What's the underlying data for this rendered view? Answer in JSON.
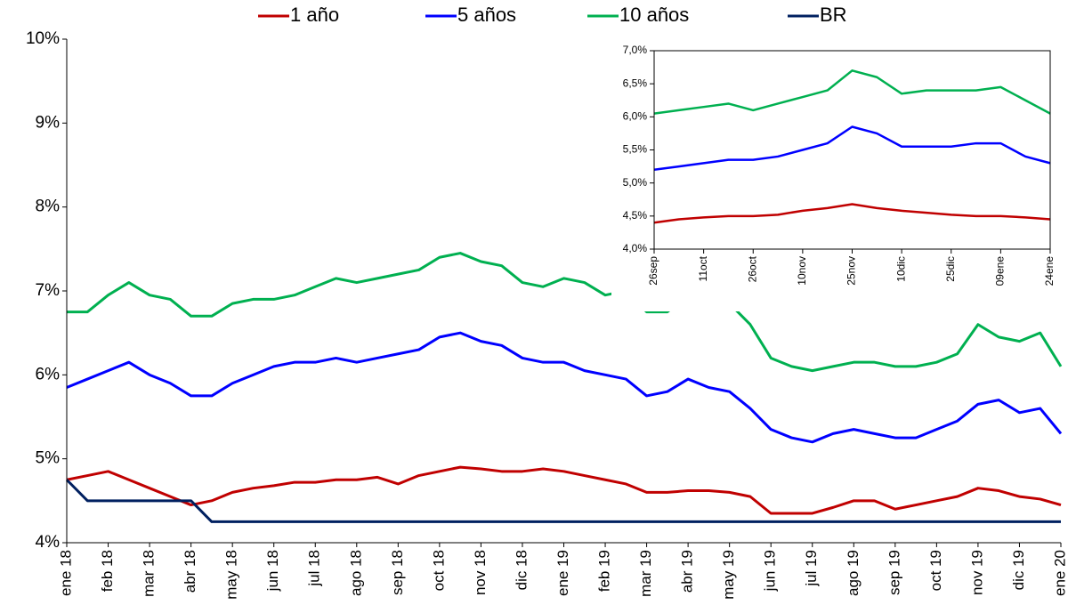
{
  "chart_data": [
    {
      "type": "line",
      "categories": [
        "ene 18",
        null,
        "feb 18",
        null,
        "mar 18",
        null,
        "abr 18",
        null,
        "may 18",
        null,
        "jun 18",
        null,
        "jul 18",
        null,
        "ago 18",
        null,
        "sep 18",
        null,
        "oct 18",
        null,
        "nov 18",
        null,
        "dic 18",
        null,
        "ene 19",
        null,
        "feb 19",
        null,
        "mar 19",
        null,
        "abr 19",
        null,
        "may 19",
        null,
        "jun 19",
        null,
        "jul 19",
        null,
        "ago 19",
        null,
        "sep 19",
        null,
        "oct 19",
        null,
        "nov 19",
        null,
        "dic 19",
        null,
        "ene 20"
      ],
      "series": [
        {
          "name": "1 año",
          "color": "#c00000",
          "values": [
            4.75,
            4.8,
            4.85,
            4.75,
            4.65,
            4.55,
            4.45,
            4.5,
            4.6,
            4.65,
            4.68,
            4.72,
            4.72,
            4.75,
            4.75,
            4.78,
            4.7,
            4.8,
            4.85,
            4.9,
            4.88,
            4.85,
            4.85,
            4.88,
            4.85,
            4.8,
            4.75,
            4.7,
            4.6,
            4.6,
            4.62,
            4.62,
            4.6,
            4.55,
            4.35,
            4.35,
            4.35,
            4.42,
            4.5,
            4.5,
            4.4,
            4.45,
            4.5,
            4.55,
            4.65,
            4.62,
            4.55,
            4.52,
            4.45
          ]
        },
        {
          "name": "5 años",
          "color": "#0000ff",
          "values": [
            5.85,
            5.95,
            6.05,
            6.15,
            6.0,
            5.9,
            5.75,
            5.75,
            5.9,
            6.0,
            6.1,
            6.15,
            6.15,
            6.2,
            6.15,
            6.2,
            6.25,
            6.3,
            6.45,
            6.5,
            6.4,
            6.35,
            6.2,
            6.15,
            6.15,
            6.05,
            6.0,
            5.95,
            5.75,
            5.8,
            5.95,
            5.85,
            5.8,
            5.6,
            5.35,
            5.25,
            5.2,
            5.3,
            5.35,
            5.3,
            5.25,
            5.25,
            5.35,
            5.45,
            5.65,
            5.7,
            5.55,
            5.6,
            5.3
          ]
        },
        {
          "name": "10 años",
          "color": "#00b050",
          "values": [
            6.75,
            6.75,
            6.95,
            7.1,
            6.95,
            6.9,
            6.7,
            6.7,
            6.85,
            6.9,
            6.9,
            6.95,
            7.05,
            7.15,
            7.1,
            7.15,
            7.2,
            7.25,
            7.4,
            7.45,
            7.35,
            7.3,
            7.1,
            7.05,
            7.15,
            7.1,
            6.95,
            7.0,
            6.75,
            6.75,
            6.95,
            6.9,
            6.85,
            6.6,
            6.2,
            6.1,
            6.05,
            6.1,
            6.15,
            6.15,
            6.1,
            6.1,
            6.15,
            6.25,
            6.6,
            6.45,
            6.4,
            6.5,
            6.1
          ]
        },
        {
          "name": "BR",
          "color": "#002060",
          "values": [
            4.75,
            4.5,
            4.5,
            4.5,
            4.5,
            4.5,
            4.5,
            4.25,
            4.25,
            4.25,
            4.25,
            4.25,
            4.25,
            4.25,
            4.25,
            4.25,
            4.25,
            4.25,
            4.25,
            4.25,
            4.25,
            4.25,
            4.25,
            4.25,
            4.25,
            4.25,
            4.25,
            4.25,
            4.25,
            4.25,
            4.25,
            4.25,
            4.25,
            4.25,
            4.25,
            4.25,
            4.25,
            4.25,
            4.25,
            4.25,
            4.25,
            4.25,
            4.25,
            4.25,
            4.25,
            4.25,
            4.25,
            4.25,
            4.25
          ]
        }
      ],
      "ylim": [
        4,
        10
      ],
      "yticks": [
        {
          "value": 4,
          "label": "4%"
        },
        {
          "value": 5,
          "label": "5%"
        },
        {
          "value": 6,
          "label": "6%"
        },
        {
          "value": 7,
          "label": "7%"
        },
        {
          "value": 8,
          "label": "8%"
        },
        {
          "value": 9,
          "label": "9%"
        },
        {
          "value": 10,
          "label": "10%"
        }
      ]
    },
    {
      "type": "line",
      "categories": [
        "26sep",
        null,
        "11oct",
        null,
        "26oct",
        null,
        "10nov",
        null,
        "25nov",
        null,
        "10dic",
        null,
        "25dic",
        null,
        "09ene",
        null,
        "24ene"
      ],
      "series": [
        {
          "color": "#c00000",
          "values": [
            4.4,
            4.45,
            4.48,
            4.5,
            4.5,
            4.52,
            4.58,
            4.62,
            4.68,
            4.62,
            4.58,
            4.55,
            4.52,
            4.5,
            4.5,
            4.48,
            4.45
          ]
        },
        {
          "color": "#0000ff",
          "values": [
            5.2,
            5.25,
            5.3,
            5.35,
            5.35,
            5.4,
            5.5,
            5.6,
            5.85,
            5.75,
            5.55,
            5.55,
            5.55,
            5.6,
            5.6,
            5.4,
            5.3
          ]
        },
        {
          "color": "#00b050",
          "values": [
            6.05,
            6.1,
            6.15,
            6.2,
            6.1,
            6.2,
            6.3,
            6.4,
            6.7,
            6.6,
            6.35,
            6.4,
            6.4,
            6.4,
            6.45,
            6.25,
            6.05
          ]
        }
      ],
      "ylim": [
        4,
        7
      ],
      "yticks": [
        {
          "value": 4,
          "label": "4,0%"
        },
        {
          "value": 4.5,
          "label": "4,5%"
        },
        {
          "value": 5,
          "label": "5,0%"
        },
        {
          "value": 5.5,
          "label": "5,5%"
        },
        {
          "value": 6,
          "label": "6,0%"
        },
        {
          "value": 6.5,
          "label": "6,5%"
        },
        {
          "value": 7,
          "label": "7,0%"
        }
      ]
    }
  ]
}
